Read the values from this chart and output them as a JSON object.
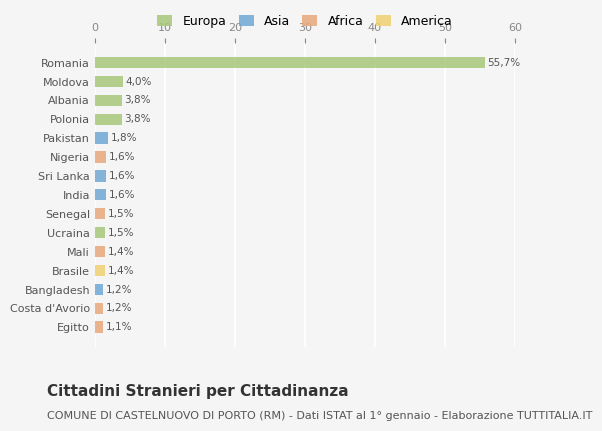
{
  "countries": [
    "Romania",
    "Moldova",
    "Albania",
    "Polonia",
    "Pakistan",
    "Nigeria",
    "Sri Lanka",
    "India",
    "Senegal",
    "Ucraina",
    "Mali",
    "Brasile",
    "Bangladesh",
    "Costa d'Avorio",
    "Egitto"
  ],
  "values": [
    55.7,
    4.0,
    3.8,
    3.8,
    1.8,
    1.6,
    1.6,
    1.6,
    1.5,
    1.5,
    1.4,
    1.4,
    1.2,
    1.2,
    1.1
  ],
  "labels": [
    "55,7%",
    "4,0%",
    "3,8%",
    "3,8%",
    "1,8%",
    "1,6%",
    "1,6%",
    "1,6%",
    "1,5%",
    "1,5%",
    "1,4%",
    "1,4%",
    "1,2%",
    "1,2%",
    "1,1%"
  ],
  "regions": [
    "Europa",
    "Europa",
    "Europa",
    "Europa",
    "Asia",
    "Africa",
    "Asia",
    "Asia",
    "Africa",
    "Europa",
    "Africa",
    "America",
    "Asia",
    "Africa",
    "Africa"
  ],
  "colors": {
    "Europa": "#a8c87a",
    "Asia": "#6fa8d4",
    "Africa": "#e8a87c",
    "America": "#f0d070"
  },
  "legend_order": [
    "Europa",
    "Asia",
    "Africa",
    "America"
  ],
  "xlim": [
    0,
    60
  ],
  "xticks": [
    0,
    10,
    20,
    30,
    40,
    50,
    60
  ],
  "title": "Cittadini Stranieri per Cittadinanza",
  "subtitle": "COMUNE DI CASTELNUOVO DI PORTO (RM) - Dati ISTAT al 1° gennaio - Elaborazione TUTTITALIA.IT",
  "background_color": "#f5f5f5",
  "grid_color": "#ffffff",
  "bar_height": 0.6,
  "title_fontsize": 11,
  "subtitle_fontsize": 8
}
